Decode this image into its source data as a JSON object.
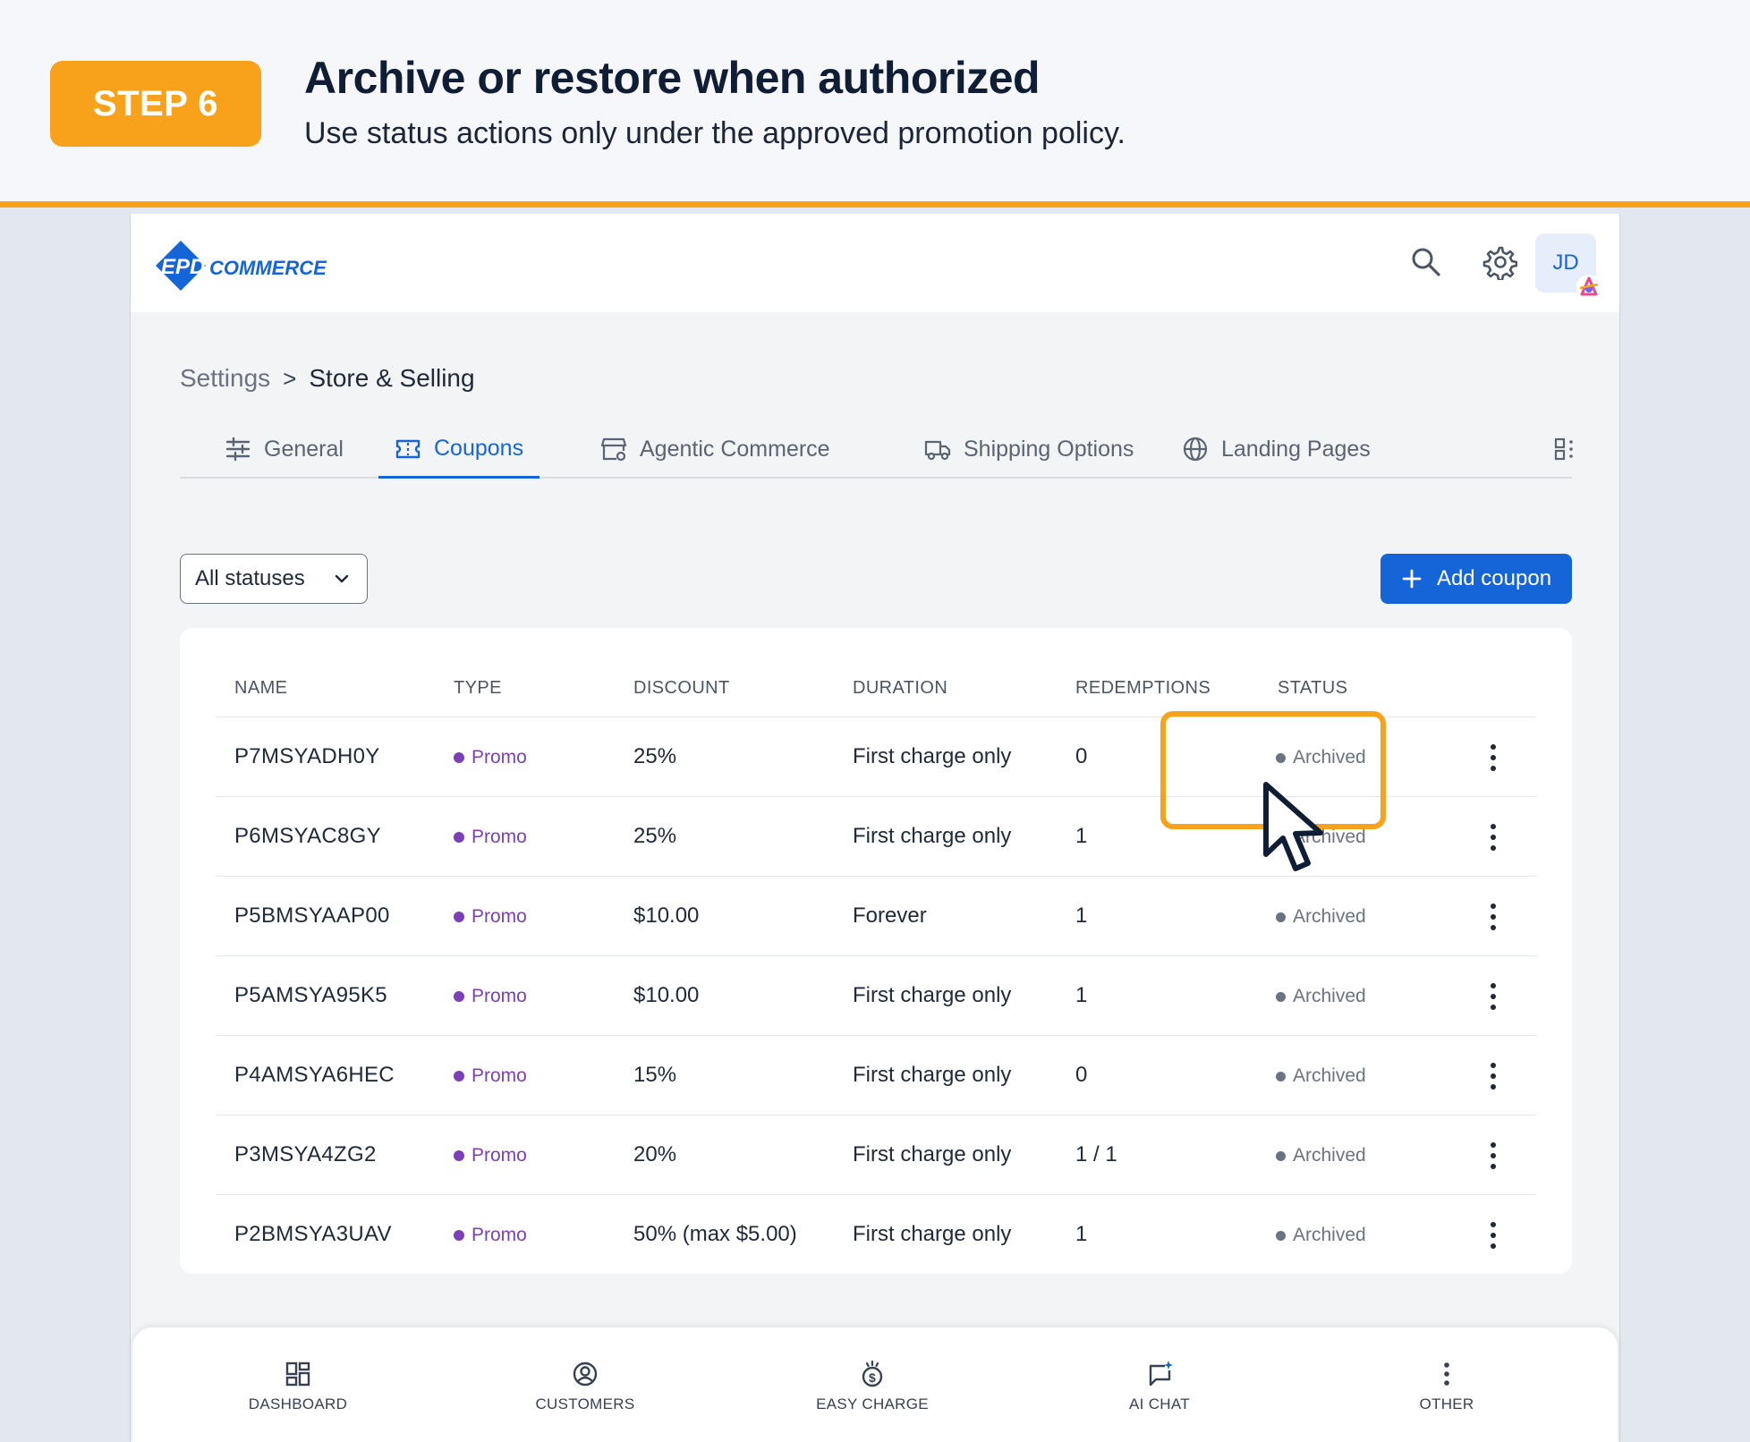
{
  "banner": {
    "step": "STEP 6",
    "title": "Archive or restore when authorized",
    "subtitle": "Use status actions only under the approved promotion policy."
  },
  "header": {
    "logo": "EPD Commerce",
    "avatar_initials": "JD",
    "icons": [
      "search-icon",
      "gear-icon"
    ]
  },
  "breadcrumb": {
    "parent": "Settings",
    "separator": ">",
    "current": "Store & Selling"
  },
  "tabs": [
    {
      "label": "General",
      "icon": "sliders-icon"
    },
    {
      "label": "Coupons",
      "icon": "coupon-icon",
      "active": true
    },
    {
      "label": "Agentic Commerce",
      "icon": "storefront-icon"
    },
    {
      "label": "Shipping Options",
      "icon": "truck-icon"
    },
    {
      "label": "Landing Pages",
      "icon": "globe-icon"
    }
  ],
  "filter": {
    "label": "All statuses"
  },
  "actions": {
    "add_coupon": "Add coupon"
  },
  "table": {
    "columns": [
      "NAME",
      "TYPE",
      "DISCOUNT",
      "DURATION",
      "REDEMPTIONS",
      "STATUS"
    ],
    "rows": [
      {
        "name": "P7MSYADH0Y",
        "type": "Promo",
        "discount": "25%",
        "duration": "First charge only",
        "redemptions": "0",
        "status": "Archived"
      },
      {
        "name": "P6MSYAC8GY",
        "type": "Promo",
        "discount": "25%",
        "duration": "First charge only",
        "redemptions": "1",
        "status": "Archived"
      },
      {
        "name": "P5BMSYAAP00",
        "type": "Promo",
        "discount": "$10.00",
        "duration": "Forever",
        "redemptions": "1",
        "status": "Archived"
      },
      {
        "name": "P5AMSYA95K5",
        "type": "Promo",
        "discount": "$10.00",
        "duration": "First charge only",
        "redemptions": "1",
        "status": "Archived"
      },
      {
        "name": "P4AMSYA6HEC",
        "type": "Promo",
        "discount": "15%",
        "duration": "First charge only",
        "redemptions": "0",
        "status": "Archived"
      },
      {
        "name": "P3MSYA4ZG2",
        "type": "Promo",
        "discount": "20%",
        "duration": "First charge only",
        "redemptions": "1 / 1",
        "status": "Archived"
      },
      {
        "name": "P2BMSYA3UAV",
        "type": "Promo",
        "discount": "50% (max $5.00)",
        "duration": "First charge only",
        "redemptions": "1",
        "status": "Archived"
      }
    ]
  },
  "bottom_nav": [
    {
      "label": "DASHBOARD",
      "icon": "dashboard-icon"
    },
    {
      "label": "CUSTOMERS",
      "icon": "customers-icon"
    },
    {
      "label": "EASY CHARGE",
      "icon": "money-icon"
    },
    {
      "label": "AI CHAT",
      "icon": "chat-icon"
    },
    {
      "label": "OTHER",
      "icon": "more-icon"
    }
  ],
  "colors": {
    "accent": "#f7a21a",
    "primary": "#1565d8",
    "promo": "#7c3fb8",
    "archived": "#6b7280"
  }
}
